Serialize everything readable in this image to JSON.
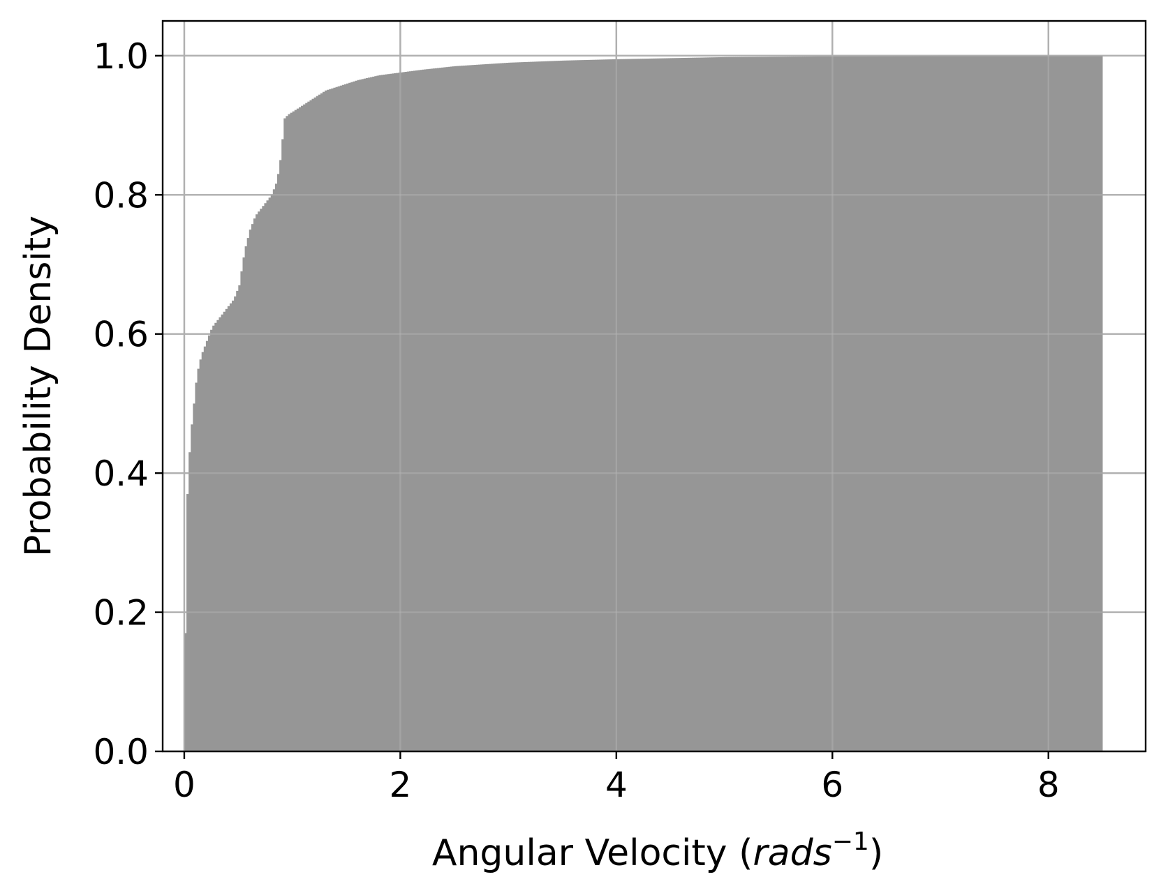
{
  "chart_data": {
    "type": "bar",
    "title": "",
    "xlabel": {
      "main": "Angular Velocity (",
      "italic": "rads",
      "superscript": "−1",
      "close": ")"
    },
    "ylabel": "Probability Density",
    "xlim": [
      -0.2,
      8.9
    ],
    "ylim": [
      0.0,
      1.05
    ],
    "xticks": [
      0,
      2,
      4,
      6,
      8
    ],
    "xtick_labels": [
      "0",
      "2",
      "4",
      "6",
      "8"
    ],
    "yticks": [
      0.0,
      0.2,
      0.4,
      0.6,
      0.8,
      1.0
    ],
    "ytick_labels": [
      "0.0",
      "0.2",
      "0.4",
      "0.6",
      "0.8",
      "1.0"
    ],
    "grid": true,
    "bar_color": "#969696",
    "cumulative_curve": {
      "x": [
        0.0,
        0.01,
        0.02,
        0.04,
        0.06,
        0.08,
        0.1,
        0.12,
        0.15,
        0.2,
        0.25,
        0.3,
        0.35,
        0.4,
        0.45,
        0.5,
        0.55,
        0.6,
        0.65,
        0.7,
        0.8,
        0.85,
        0.88,
        0.9,
        0.92,
        0.95,
        1.0,
        1.1,
        1.2,
        1.3,
        1.4,
        1.5,
        1.6,
        1.8,
        2.0,
        2.2,
        2.5,
        3.0,
        3.5,
        4.0,
        5.0,
        6.0,
        7.0,
        8.0,
        8.5
      ],
      "y": [
        0.17,
        0.28,
        0.37,
        0.43,
        0.47,
        0.5,
        0.53,
        0.55,
        0.57,
        0.59,
        0.61,
        0.62,
        0.63,
        0.64,
        0.65,
        0.67,
        0.72,
        0.75,
        0.77,
        0.78,
        0.8,
        0.82,
        0.85,
        0.88,
        0.91,
        0.915,
        0.92,
        0.93,
        0.94,
        0.95,
        0.955,
        0.96,
        0.965,
        0.972,
        0.976,
        0.98,
        0.985,
        0.99,
        0.993,
        0.995,
        0.998,
        0.999,
        1.0,
        1.0,
        1.0
      ]
    },
    "bin_width": 0.02,
    "x_max": 8.5
  }
}
